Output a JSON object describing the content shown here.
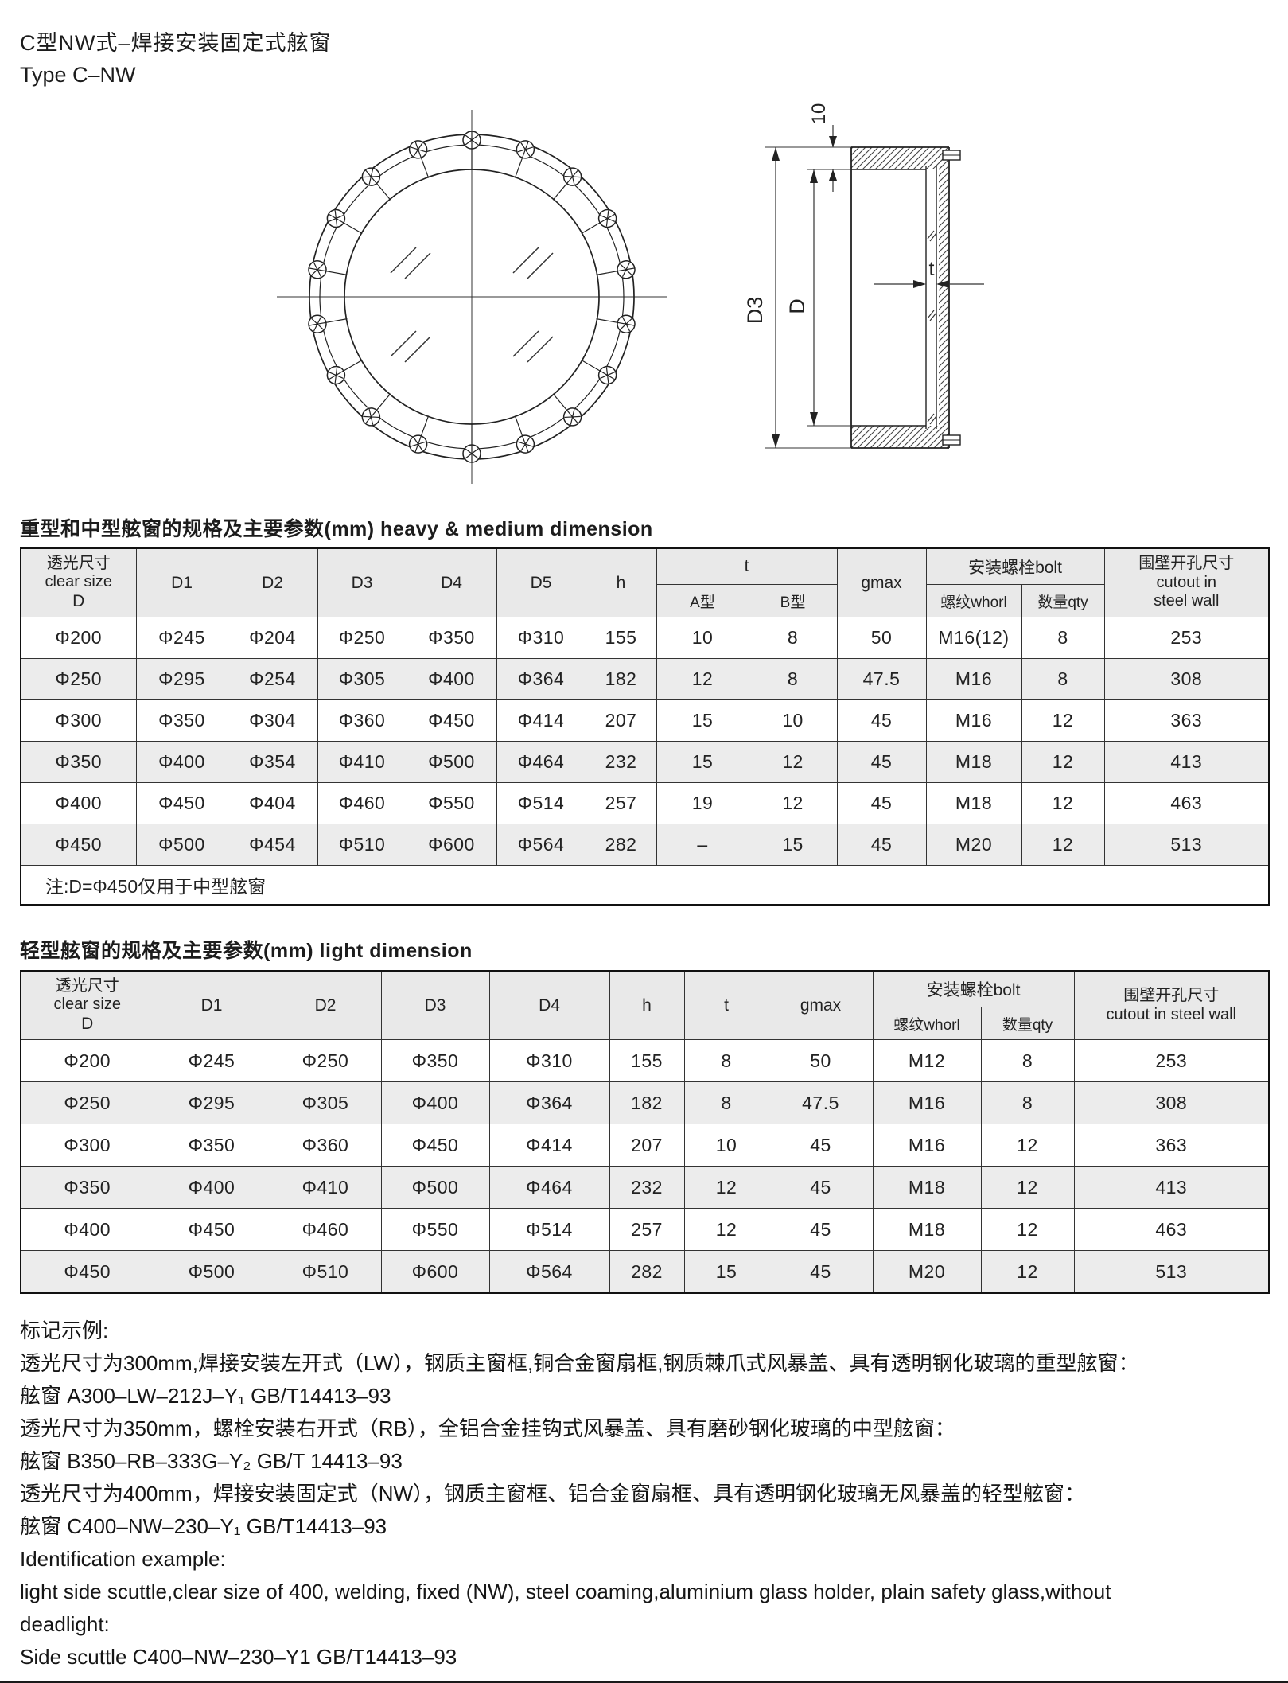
{
  "page": {
    "title_cn": "C型NW式–焊接安装固定式舷窗",
    "title_en": "Type C–NW"
  },
  "drawing": {
    "dim_10": "10",
    "dim_d3": "D3",
    "dim_d": "D",
    "dim_t": "t"
  },
  "table_heavy": {
    "caption": "重型和中型舷窗的规格及主要参数(mm)  heavy & medium dimension",
    "headers": {
      "clear_size_cn": "透光尺寸",
      "clear_size_en": "clear size",
      "clear_size_sym": "D",
      "d1": "D1",
      "d2": "D2",
      "d3": "D3",
      "d4": "D4",
      "d5": "D5",
      "h": "h",
      "t": "t",
      "t_a": "A型",
      "t_b": "B型",
      "gmax": "gmax",
      "bolt": "安装螺栓bolt",
      "whorl": "螺纹whorl",
      "qty": "数量qty",
      "cutout_cn": "围壁开孔尺寸",
      "cutout_en1": "cutout in",
      "cutout_en2": "steel wall"
    },
    "rows": [
      [
        "Φ200",
        "Φ245",
        "Φ204",
        "Φ250",
        "Φ350",
        "Φ310",
        "155",
        "10",
        "8",
        "50",
        "M16(12)",
        "8",
        "253"
      ],
      [
        "Φ250",
        "Φ295",
        "Φ254",
        "Φ305",
        "Φ400",
        "Φ364",
        "182",
        "12",
        "8",
        "47.5",
        "M16",
        "8",
        "308"
      ],
      [
        "Φ300",
        "Φ350",
        "Φ304",
        "Φ360",
        "Φ450",
        "Φ414",
        "207",
        "15",
        "10",
        "45",
        "M16",
        "12",
        "363"
      ],
      [
        "Φ350",
        "Φ400",
        "Φ354",
        "Φ410",
        "Φ500",
        "Φ464",
        "232",
        "15",
        "12",
        "45",
        "M18",
        "12",
        "413"
      ],
      [
        "Φ400",
        "Φ450",
        "Φ404",
        "Φ460",
        "Φ550",
        "Φ514",
        "257",
        "19",
        "12",
        "45",
        "M18",
        "12",
        "463"
      ],
      [
        "Φ450",
        "Φ500",
        "Φ454",
        "Φ510",
        "Φ600",
        "Φ564",
        "282",
        "–",
        "15",
        "45",
        "M20",
        "12",
        "513"
      ]
    ],
    "note": "注:D=Φ450仅用于中型舷窗"
  },
  "table_light": {
    "caption": "轻型舷窗的规格及主要参数(mm)  light dimension",
    "headers": {
      "clear_size_cn": "透光尺寸",
      "clear_size_en": "clear size",
      "clear_size_sym": "D",
      "d1": "D1",
      "d2": "D2",
      "d3": "D3",
      "d4": "D4",
      "h": "h",
      "t": "t",
      "gmax": "gmax",
      "bolt": "安装螺栓bolt",
      "whorl": "螺纹whorl",
      "qty": "数量qty",
      "cutout_cn": "围壁开孔尺寸",
      "cutout_en": "cutout in steel wall"
    },
    "rows": [
      [
        "Φ200",
        "Φ245",
        "Φ250",
        "Φ350",
        "Φ310",
        "155",
        "8",
        "50",
        "M12",
        "8",
        "253"
      ],
      [
        "Φ250",
        "Φ295",
        "Φ305",
        "Φ400",
        "Φ364",
        "182",
        "8",
        "47.5",
        "M16",
        "8",
        "308"
      ],
      [
        "Φ300",
        "Φ350",
        "Φ360",
        "Φ450",
        "Φ414",
        "207",
        "10",
        "45",
        "M16",
        "12",
        "363"
      ],
      [
        "Φ350",
        "Φ400",
        "Φ410",
        "Φ500",
        "Φ464",
        "232",
        "12",
        "45",
        "M18",
        "12",
        "413"
      ],
      [
        "Φ400",
        "Φ450",
        "Φ460",
        "Φ550",
        "Φ514",
        "257",
        "12",
        "45",
        "M18",
        "12",
        "463"
      ],
      [
        "Φ450",
        "Φ500",
        "Φ510",
        "Φ600",
        "Φ564",
        "282",
        "15",
        "45",
        "M20",
        "12",
        "513"
      ]
    ]
  },
  "example": {
    "lines": [
      "标记示例:",
      "透光尺寸为300mm,焊接安装左开式（LW），钢质主窗框,铜合金窗扇框,钢质棘爪式风暴盖、具有透明钢化玻璃的重型舷窗：",
      "舷窗 A300–LW–212J–Y₁  GB/T14413–93",
      "透光尺寸为350mm，螺栓安装右开式（RB），全铝合金挂钩式风暴盖、具有磨砂钢化玻璃的中型舷窗：",
      "舷窗 B350–RB–333G–Y₂  GB/T 14413–93",
      "透光尺寸为400mm，焊接安装固定式（NW），钢质主窗框、铝合金窗扇框、具有透明钢化玻璃无风暴盖的轻型舷窗：",
      "舷窗 C400–NW–230–Y₁  GB/T14413–93",
      "Identification example:",
      "light side scuttle,clear size of 400, welding, fixed (NW), steel coaming,aluminium glass holder, plain safety glass,without",
      "deadlight:",
      "Side scuttle C400–NW–230–Y1 GB/T14413–93"
    ]
  }
}
